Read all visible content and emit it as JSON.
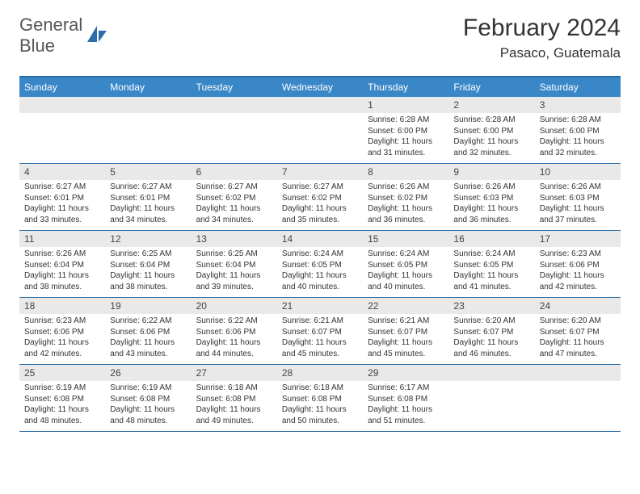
{
  "logo": {
    "text_general": "General",
    "text_blue": "Blue"
  },
  "title": "February 2024",
  "location": "Pasaco, Guatemala",
  "day_headers": [
    "Sunday",
    "Monday",
    "Tuesday",
    "Wednesday",
    "Thursday",
    "Friday",
    "Saturday"
  ],
  "colors": {
    "header_bg": "#3a87c8",
    "border": "#2d6ea8",
    "daynum_bg": "#e9e9e9"
  },
  "weeks": [
    [
      {
        "n": "",
        "sr": "",
        "ss": "",
        "dl": ""
      },
      {
        "n": "",
        "sr": "",
        "ss": "",
        "dl": ""
      },
      {
        "n": "",
        "sr": "",
        "ss": "",
        "dl": ""
      },
      {
        "n": "",
        "sr": "",
        "ss": "",
        "dl": ""
      },
      {
        "n": "1",
        "sr": "Sunrise: 6:28 AM",
        "ss": "Sunset: 6:00 PM",
        "dl": "Daylight: 11 hours and 31 minutes."
      },
      {
        "n": "2",
        "sr": "Sunrise: 6:28 AM",
        "ss": "Sunset: 6:00 PM",
        "dl": "Daylight: 11 hours and 32 minutes."
      },
      {
        "n": "3",
        "sr": "Sunrise: 6:28 AM",
        "ss": "Sunset: 6:00 PM",
        "dl": "Daylight: 11 hours and 32 minutes."
      }
    ],
    [
      {
        "n": "4",
        "sr": "Sunrise: 6:27 AM",
        "ss": "Sunset: 6:01 PM",
        "dl": "Daylight: 11 hours and 33 minutes."
      },
      {
        "n": "5",
        "sr": "Sunrise: 6:27 AM",
        "ss": "Sunset: 6:01 PM",
        "dl": "Daylight: 11 hours and 34 minutes."
      },
      {
        "n": "6",
        "sr": "Sunrise: 6:27 AM",
        "ss": "Sunset: 6:02 PM",
        "dl": "Daylight: 11 hours and 34 minutes."
      },
      {
        "n": "7",
        "sr": "Sunrise: 6:27 AM",
        "ss": "Sunset: 6:02 PM",
        "dl": "Daylight: 11 hours and 35 minutes."
      },
      {
        "n": "8",
        "sr": "Sunrise: 6:26 AM",
        "ss": "Sunset: 6:02 PM",
        "dl": "Daylight: 11 hours and 36 minutes."
      },
      {
        "n": "9",
        "sr": "Sunrise: 6:26 AM",
        "ss": "Sunset: 6:03 PM",
        "dl": "Daylight: 11 hours and 36 minutes."
      },
      {
        "n": "10",
        "sr": "Sunrise: 6:26 AM",
        "ss": "Sunset: 6:03 PM",
        "dl": "Daylight: 11 hours and 37 minutes."
      }
    ],
    [
      {
        "n": "11",
        "sr": "Sunrise: 6:26 AM",
        "ss": "Sunset: 6:04 PM",
        "dl": "Daylight: 11 hours and 38 minutes."
      },
      {
        "n": "12",
        "sr": "Sunrise: 6:25 AM",
        "ss": "Sunset: 6:04 PM",
        "dl": "Daylight: 11 hours and 38 minutes."
      },
      {
        "n": "13",
        "sr": "Sunrise: 6:25 AM",
        "ss": "Sunset: 6:04 PM",
        "dl": "Daylight: 11 hours and 39 minutes."
      },
      {
        "n": "14",
        "sr": "Sunrise: 6:24 AM",
        "ss": "Sunset: 6:05 PM",
        "dl": "Daylight: 11 hours and 40 minutes."
      },
      {
        "n": "15",
        "sr": "Sunrise: 6:24 AM",
        "ss": "Sunset: 6:05 PM",
        "dl": "Daylight: 11 hours and 40 minutes."
      },
      {
        "n": "16",
        "sr": "Sunrise: 6:24 AM",
        "ss": "Sunset: 6:05 PM",
        "dl": "Daylight: 11 hours and 41 minutes."
      },
      {
        "n": "17",
        "sr": "Sunrise: 6:23 AM",
        "ss": "Sunset: 6:06 PM",
        "dl": "Daylight: 11 hours and 42 minutes."
      }
    ],
    [
      {
        "n": "18",
        "sr": "Sunrise: 6:23 AM",
        "ss": "Sunset: 6:06 PM",
        "dl": "Daylight: 11 hours and 42 minutes."
      },
      {
        "n": "19",
        "sr": "Sunrise: 6:22 AM",
        "ss": "Sunset: 6:06 PM",
        "dl": "Daylight: 11 hours and 43 minutes."
      },
      {
        "n": "20",
        "sr": "Sunrise: 6:22 AM",
        "ss": "Sunset: 6:06 PM",
        "dl": "Daylight: 11 hours and 44 minutes."
      },
      {
        "n": "21",
        "sr": "Sunrise: 6:21 AM",
        "ss": "Sunset: 6:07 PM",
        "dl": "Daylight: 11 hours and 45 minutes."
      },
      {
        "n": "22",
        "sr": "Sunrise: 6:21 AM",
        "ss": "Sunset: 6:07 PM",
        "dl": "Daylight: 11 hours and 45 minutes."
      },
      {
        "n": "23",
        "sr": "Sunrise: 6:20 AM",
        "ss": "Sunset: 6:07 PM",
        "dl": "Daylight: 11 hours and 46 minutes."
      },
      {
        "n": "24",
        "sr": "Sunrise: 6:20 AM",
        "ss": "Sunset: 6:07 PM",
        "dl": "Daylight: 11 hours and 47 minutes."
      }
    ],
    [
      {
        "n": "25",
        "sr": "Sunrise: 6:19 AM",
        "ss": "Sunset: 6:08 PM",
        "dl": "Daylight: 11 hours and 48 minutes."
      },
      {
        "n": "26",
        "sr": "Sunrise: 6:19 AM",
        "ss": "Sunset: 6:08 PM",
        "dl": "Daylight: 11 hours and 48 minutes."
      },
      {
        "n": "27",
        "sr": "Sunrise: 6:18 AM",
        "ss": "Sunset: 6:08 PM",
        "dl": "Daylight: 11 hours and 49 minutes."
      },
      {
        "n": "28",
        "sr": "Sunrise: 6:18 AM",
        "ss": "Sunset: 6:08 PM",
        "dl": "Daylight: 11 hours and 50 minutes."
      },
      {
        "n": "29",
        "sr": "Sunrise: 6:17 AM",
        "ss": "Sunset: 6:08 PM",
        "dl": "Daylight: 11 hours and 51 minutes."
      },
      {
        "n": "",
        "sr": "",
        "ss": "",
        "dl": ""
      },
      {
        "n": "",
        "sr": "",
        "ss": "",
        "dl": ""
      }
    ]
  ]
}
